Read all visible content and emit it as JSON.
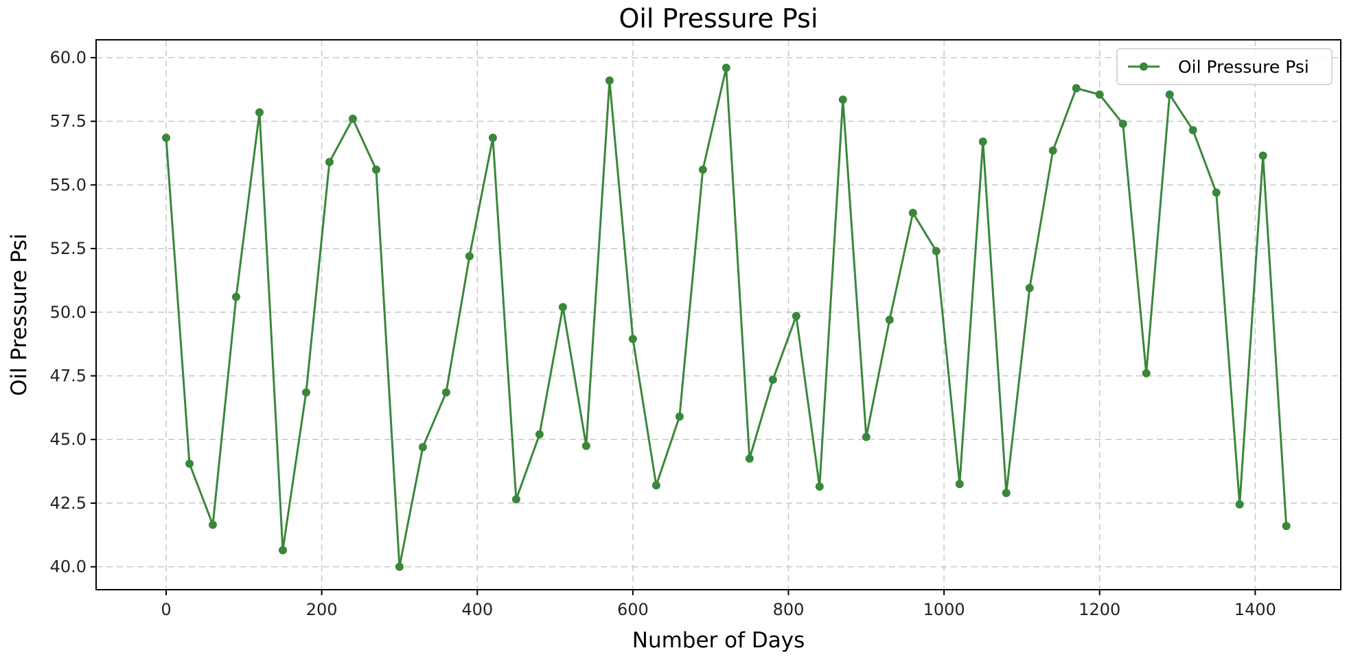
{
  "chart_data": {
    "type": "line",
    "title": "Oil Pressure Psi",
    "xlabel": "Number of Days",
    "ylabel": "Oil Pressure Psi",
    "xlim": [
      -90,
      1510
    ],
    "ylim": [
      39.1,
      60.7
    ],
    "xticks": [
      0,
      200,
      400,
      600,
      800,
      1000,
      1200,
      1400
    ],
    "xtick_labels": [
      "0",
      "200",
      "400",
      "600",
      "800",
      "1000",
      "1200",
      "1400"
    ],
    "yticks": [
      40,
      42.5,
      45,
      47.5,
      50,
      52.5,
      55,
      57.5,
      60
    ],
    "ytick_labels": [
      "40.0",
      "42.5",
      "45.0",
      "47.5",
      "50.0",
      "52.5",
      "55.0",
      "57.5",
      "60.0"
    ],
    "grid": true,
    "legend_position": "top-right",
    "series": [
      {
        "name": "Oil Pressure Psi",
        "color": "#3a863a",
        "marker": "circle",
        "x": [
          0,
          30,
          60,
          90,
          120,
          150,
          180,
          210,
          240,
          270,
          300,
          330,
          360,
          390,
          420,
          450,
          480,
          510,
          540,
          570,
          600,
          630,
          660,
          690,
          720,
          750,
          780,
          810,
          840,
          870,
          900,
          930,
          960,
          990,
          1020,
          1050,
          1080,
          1110,
          1140,
          1170,
          1200,
          1230,
          1260,
          1290,
          1320,
          1350,
          1380,
          1410,
          1440
        ],
        "values": [
          56.85,
          44.05,
          41.65,
          50.6,
          57.85,
          40.65,
          46.85,
          55.9,
          57.6,
          55.6,
          40.0,
          44.7,
          46.85,
          52.2,
          56.85,
          42.65,
          45.2,
          50.2,
          44.75,
          59.1,
          48.95,
          43.2,
          45.9,
          55.6,
          59.6,
          44.25,
          47.35,
          49.85,
          43.15,
          58.35,
          45.1,
          49.7,
          53.9,
          52.4,
          43.25,
          56.7,
          42.9,
          50.95,
          56.35,
          58.8,
          58.55,
          57.4,
          47.6,
          58.55,
          57.15,
          54.7,
          42.45,
          56.15,
          41.6
        ]
      }
    ]
  }
}
